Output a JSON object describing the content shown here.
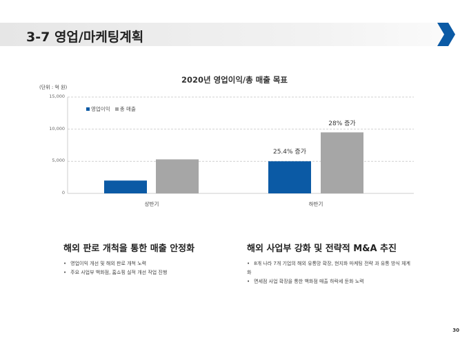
{
  "header": {
    "title": "3-7 영업/마케팅계획",
    "brand_color": "#0b5aa5"
  },
  "chart_data": {
    "type": "bar",
    "title": "2020년 영업이익/총 매출 목표",
    "unit_label": "(단위 : 억 원)",
    "categories": [
      "상반기",
      "하반기"
    ],
    "series": [
      {
        "name": "영업이익",
        "values": [
          2000,
          5000
        ],
        "color": "#0b5aa5"
      },
      {
        "name": "총 매출",
        "values": [
          5300,
          9500
        ],
        "color": "#a6a6a6"
      }
    ],
    "ylim": [
      0,
      15000
    ],
    "yticks": [
      "0",
      "5,000",
      "10,000",
      "15,000"
    ],
    "grid": true,
    "legend": "top-left",
    "annotations": [
      "25.4% 증가",
      "28% 증가"
    ]
  },
  "left": {
    "heading": "해외 판로 개척을 통한 매출 안정화",
    "bullets": [
      "영업이익 개선 및 해외 판로 개척 노력",
      "주요 사업부 백화점, 홈쇼핑 실적 개선 작업 진행"
    ]
  },
  "right": {
    "heading": "해외 사업부 강화 및 전략적 M&A 추진",
    "bullets": [
      "8개 나라 7개 기업의 해외 유통망 확장, 현지화 마케팅 전략 과 유통 방식 체계화",
      "면세점 사업 확장을 통한 백화점 매출 하락세 둔화 노력"
    ]
  },
  "page_number": "30"
}
